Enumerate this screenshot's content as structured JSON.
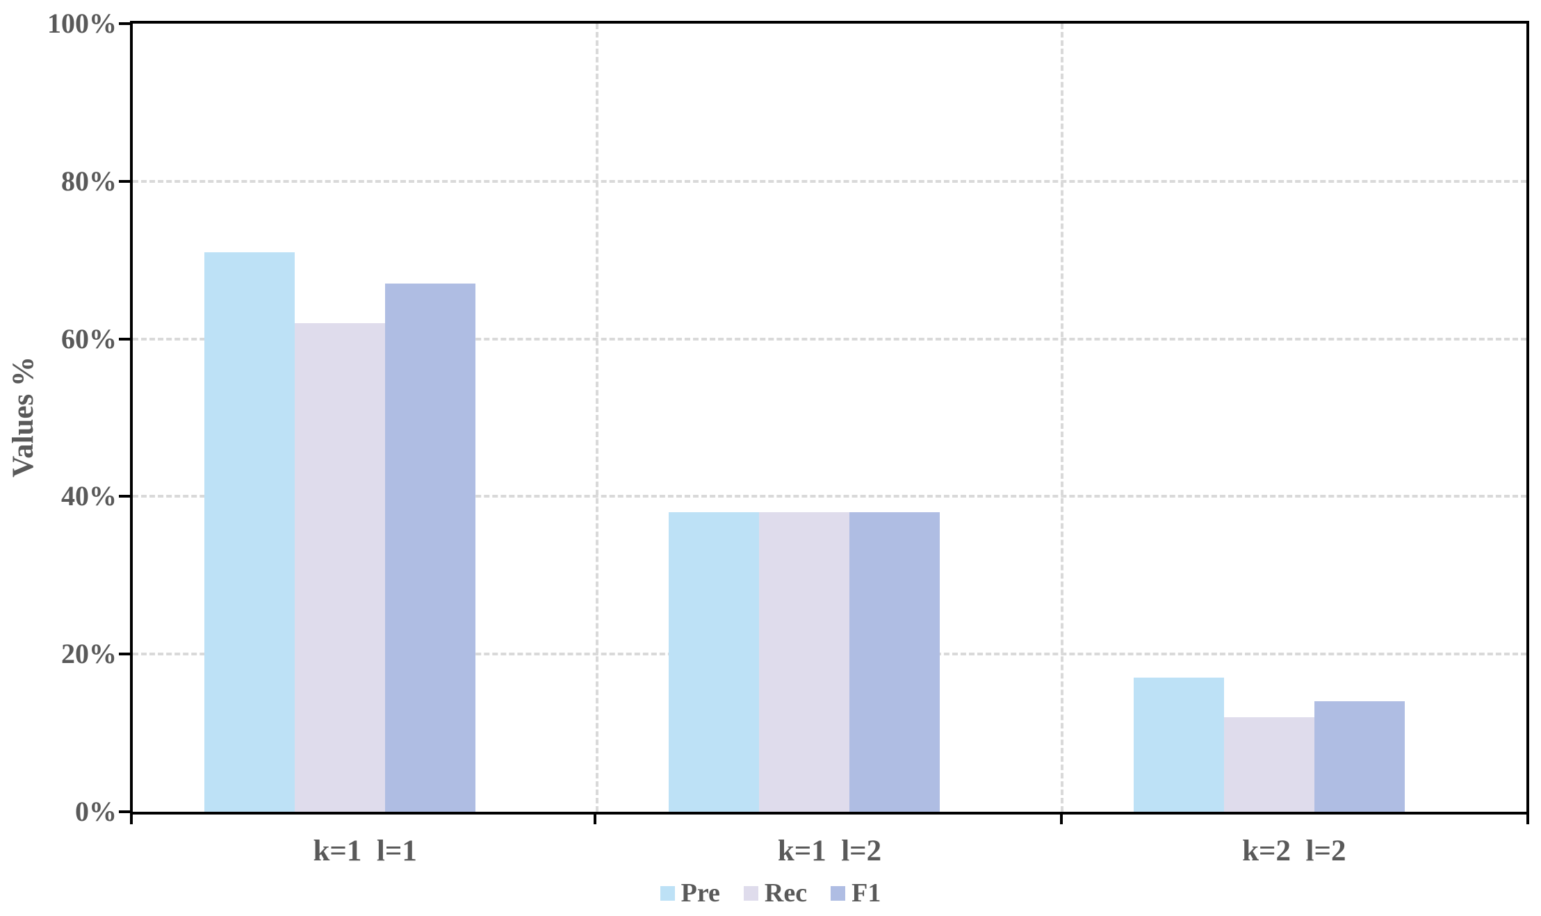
{
  "chart_data": {
    "type": "bar",
    "title": "",
    "xlabel": "",
    "ylabel": "Values %",
    "categories": [
      "k=1  l=1",
      "k=1  l=2",
      "k=2  l=2"
    ],
    "series": [
      {
        "name": "Pre",
        "color": "#BDE1F6",
        "values": [
          71,
          38,
          17
        ]
      },
      {
        "name": "Rec",
        "color": "#DFDCEC",
        "values": [
          62,
          38,
          12
        ]
      },
      {
        "name": "F1",
        "color": "#AFBDE3",
        "values": [
          67,
          38,
          14
        ]
      }
    ],
    "ylim": [
      0,
      100
    ],
    "ytick_values": [
      0,
      20,
      40,
      60,
      80,
      100
    ],
    "yticks": [
      "0%",
      "20%",
      "40%",
      "60%",
      "80%",
      "100%"
    ],
    "grid": "dashed horizontal at 20/40/60/80 and vertical at category boundaries",
    "legend_position": "bottom-center",
    "value_unit": "%"
  },
  "colors": {
    "axis": "#000000",
    "grid": "#D9D9D9",
    "text": "#595959",
    "background": "#FFFFFF"
  }
}
